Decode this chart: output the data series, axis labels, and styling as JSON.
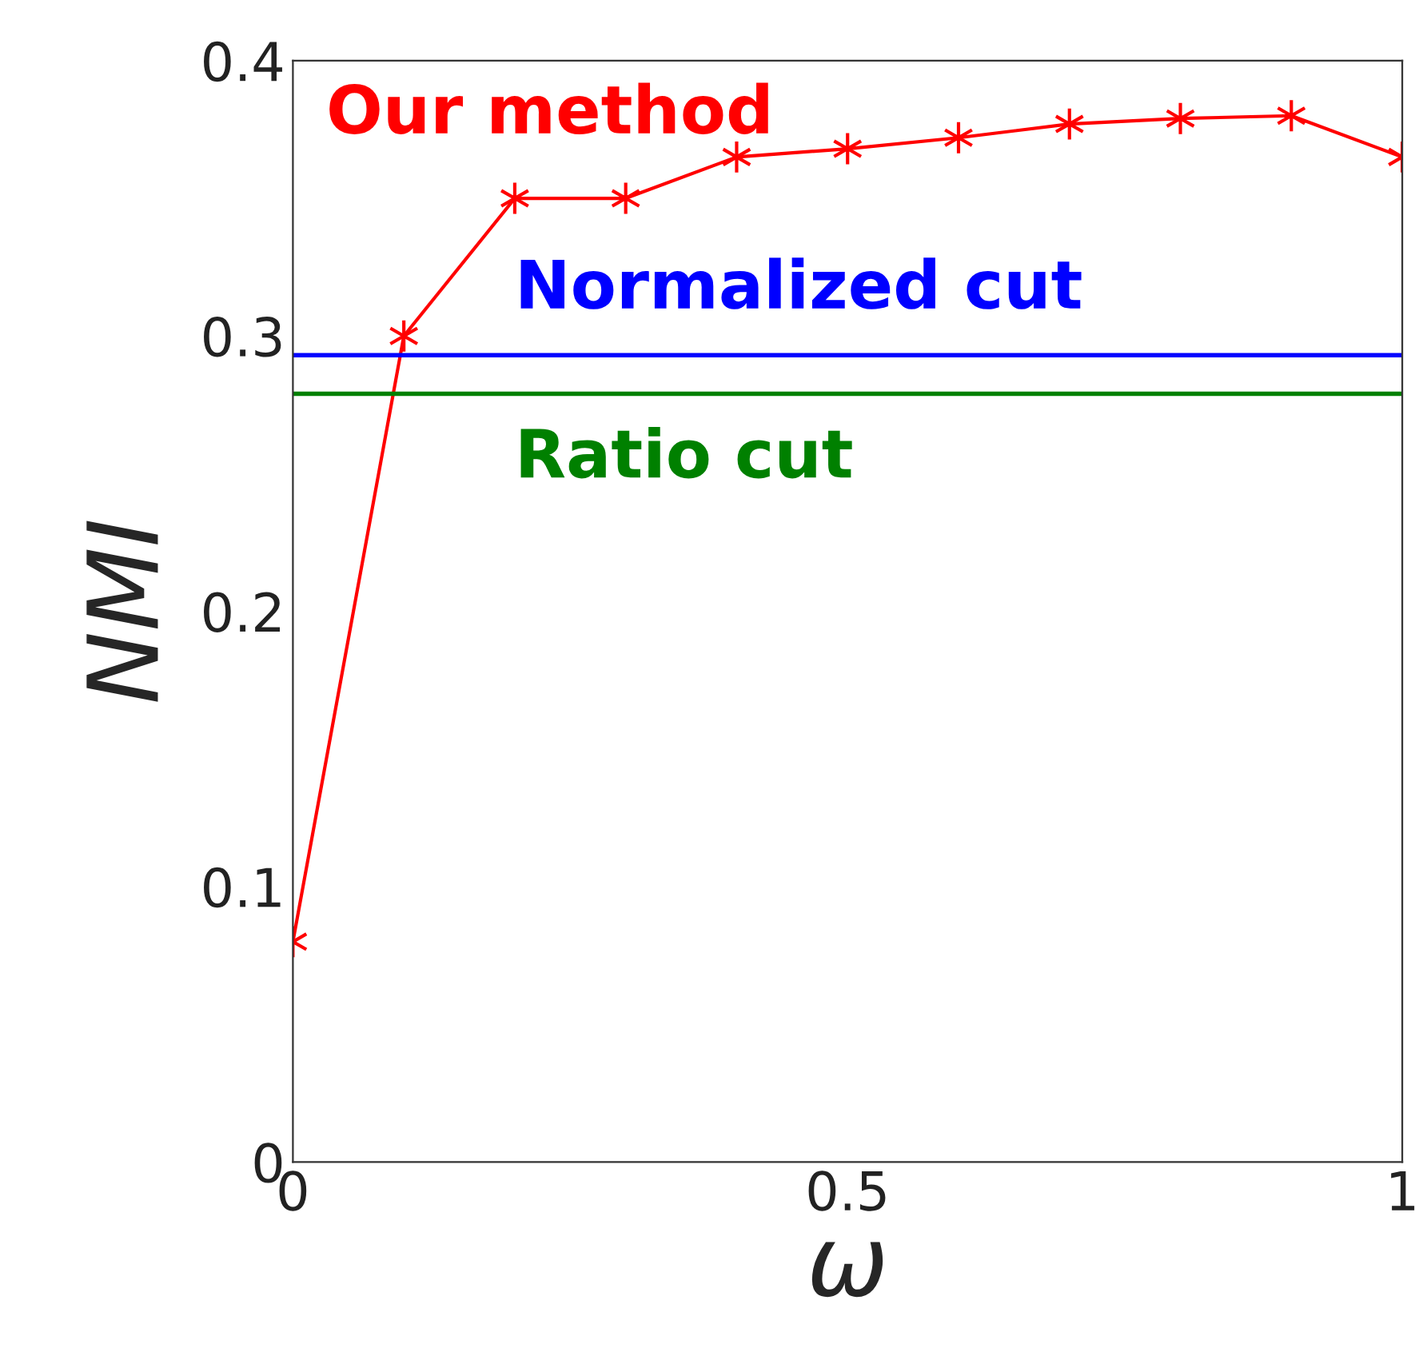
{
  "chart_data": {
    "type": "line",
    "xlabel": "ω",
    "ylabel": "NMI",
    "x": [
      0,
      0.1,
      0.2,
      0.3,
      0.4,
      0.5,
      0.6,
      0.7,
      0.8,
      0.9,
      1.0
    ],
    "series": [
      {
        "name": "Our method",
        "color": "#ff0000",
        "values": [
          0.08,
          0.3,
          0.35,
          0.35,
          0.365,
          0.368,
          0.372,
          0.377,
          0.379,
          0.38,
          0.365
        ]
      }
    ],
    "ref_lines": [
      {
        "axis": "y",
        "value": 0.293,
        "label": "Normalized cut",
        "color": "#0000ff"
      },
      {
        "axis": "y",
        "value": 0.279,
        "label": "Ratio cut",
        "color": "#008000"
      }
    ],
    "xlim": [
      0,
      1
    ],
    "ylim": [
      0,
      0.4
    ],
    "xticks": [
      0,
      0.5,
      1
    ],
    "yticks": [
      0,
      0.1,
      0.2,
      0.3,
      0.4
    ],
    "grid": false,
    "legend": false,
    "marker": "cross",
    "line_style": "solid"
  }
}
